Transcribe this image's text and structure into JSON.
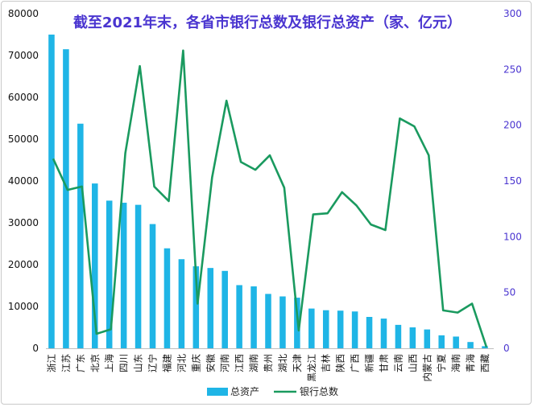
{
  "chart_data": {
    "type": "bar+line",
    "title": "截至2021年末，各省市银行总数及银行总资产（家、亿元）",
    "categories": [
      "浙江",
      "江苏",
      "广东",
      "北京",
      "上海",
      "四川",
      "山东",
      "辽宁",
      "福建",
      "河北",
      "重庆",
      "安徽",
      "河南",
      "江西",
      "湖南",
      "贵州",
      "湖北",
      "天津",
      "黑龙江",
      "吉林",
      "陕西",
      "广西",
      "新疆",
      "甘肃",
      "云南",
      "山西",
      "内蒙古",
      "宁夏",
      "海南",
      "青海",
      "西藏"
    ],
    "series": [
      {
        "name": "总资产",
        "type": "bar",
        "axis": "left",
        "color": "#1fb5e6",
        "values": [
          75000,
          71500,
          53700,
          39400,
          35300,
          34800,
          34300,
          29700,
          23900,
          21300,
          19600,
          19200,
          18500,
          15100,
          14800,
          13000,
          12400,
          12100,
          9500,
          9100,
          9000,
          8800,
          7500,
          7100,
          5600,
          5000,
          4500,
          3100,
          2800,
          1500,
          500
        ]
      },
      {
        "name": "银行总数",
        "type": "line",
        "axis": "right",
        "color": "#1a9a5f",
        "values": [
          170,
          142,
          145,
          13,
          17,
          175,
          253,
          145,
          132,
          267,
          40,
          153,
          222,
          167,
          160,
          173,
          144,
          16,
          120,
          121,
          140,
          128,
          111,
          106,
          206,
          199,
          173,
          34,
          32,
          40,
          1
        ]
      }
    ],
    "y_left": {
      "min": 0,
      "max": 80000,
      "ticks": [
        0,
        10000,
        20000,
        30000,
        40000,
        50000,
        60000,
        70000,
        80000
      ],
      "color": "#111111"
    },
    "y_right": {
      "min": 0,
      "max": 300,
      "ticks": [
        0,
        50,
        100,
        150,
        200,
        250,
        300
      ],
      "color": "#4a35d0"
    },
    "title_color": "#4a35d0",
    "grid": false,
    "legend_position": "bottom"
  }
}
